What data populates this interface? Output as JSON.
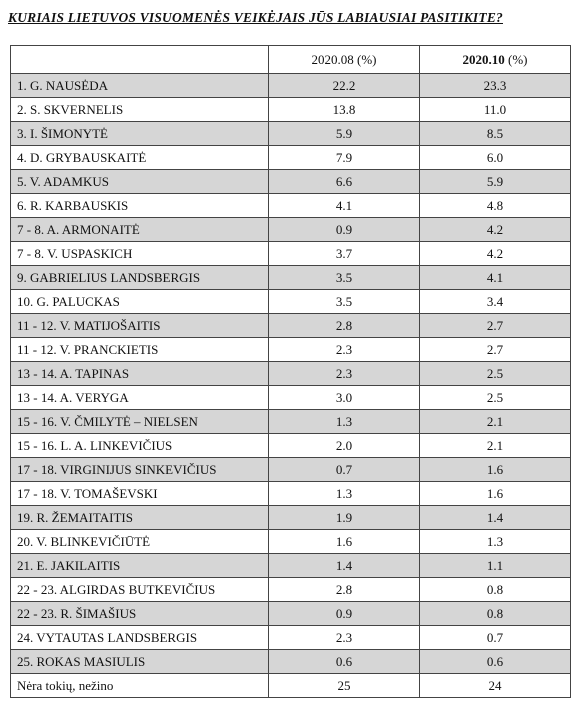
{
  "title": "KURIAIS LIETUVOS VISUOMENĖS VEIKĖJAIS JŪS LABIAUSIAI PASITIKITE?",
  "table": {
    "header": [
      {
        "period": "2020.08",
        "unit": "(%)"
      },
      {
        "period": "2020.10",
        "unit": "(%)"
      }
    ],
    "rows": [
      [
        "1. G. NAUSĖDA",
        "22.2",
        "23.3"
      ],
      [
        "2. S. SKVERNELIS",
        "13.8",
        "11.0"
      ],
      [
        "3. I. ŠIMONYTĖ",
        "5.9",
        "8.5"
      ],
      [
        "4. D. GRYBAUSKAITĖ",
        "7.9",
        "6.0"
      ],
      [
        "5. V. ADAMKUS",
        "6.6",
        "5.9"
      ],
      [
        "6. R. KARBAUSKIS",
        "4.1",
        "4.8"
      ],
      [
        "7 - 8. A. ARMONAITĖ",
        "0.9",
        "4.2"
      ],
      [
        "7 - 8. V. USPASKICH",
        "3.7",
        "4.2"
      ],
      [
        "9. GABRIELIUS LANDSBERGIS",
        "3.5",
        "4.1"
      ],
      [
        "10. G. PALUCKAS",
        "3.5",
        "3.4"
      ],
      [
        "11 - 12. V. MATIJOŠAITIS",
        "2.8",
        "2.7"
      ],
      [
        "11 - 12. V. PRANCKIETIS",
        "2.3",
        "2.7"
      ],
      [
        "13 - 14. A. TAPINAS",
        "2.3",
        "2.5"
      ],
      [
        "13 - 14. A. VERYGA",
        "3.0",
        "2.5"
      ],
      [
        "15 - 16. V. ČMILYTĖ – NIELSEN",
        "1.3",
        "2.1"
      ],
      [
        "15 - 16. L. A. LINKEVIČIUS",
        "2.0",
        "2.1"
      ],
      [
        "17 - 18. VIRGINIJUS SINKEVIČIUS",
        "0.7",
        "1.6"
      ],
      [
        "17 - 18. V. TOMAŠEVSKI",
        "1.3",
        "1.6"
      ],
      [
        "19. R. ŽEMAITAITIS",
        "1.9",
        "1.4"
      ],
      [
        "20. V. BLINKEVIČIŪTĖ",
        "1.6",
        "1.3"
      ],
      [
        "21. E. JAKILAITIS",
        "1.4",
        "1.1"
      ],
      [
        "22 - 23. ALGIRDAS BUTKEVIČIUS",
        "2.8",
        "0.8"
      ],
      [
        "22 - 23. R. ŠIMAŠIUS",
        "0.9",
        "0.8"
      ],
      [
        "24. VYTAUTAS LANDSBERGIS",
        "2.3",
        "0.7"
      ],
      [
        "25. ROKAS MASIULIS",
        "0.6",
        "0.6"
      ],
      [
        "Nėra tokių, nežino",
        "25",
        "24"
      ]
    ]
  }
}
